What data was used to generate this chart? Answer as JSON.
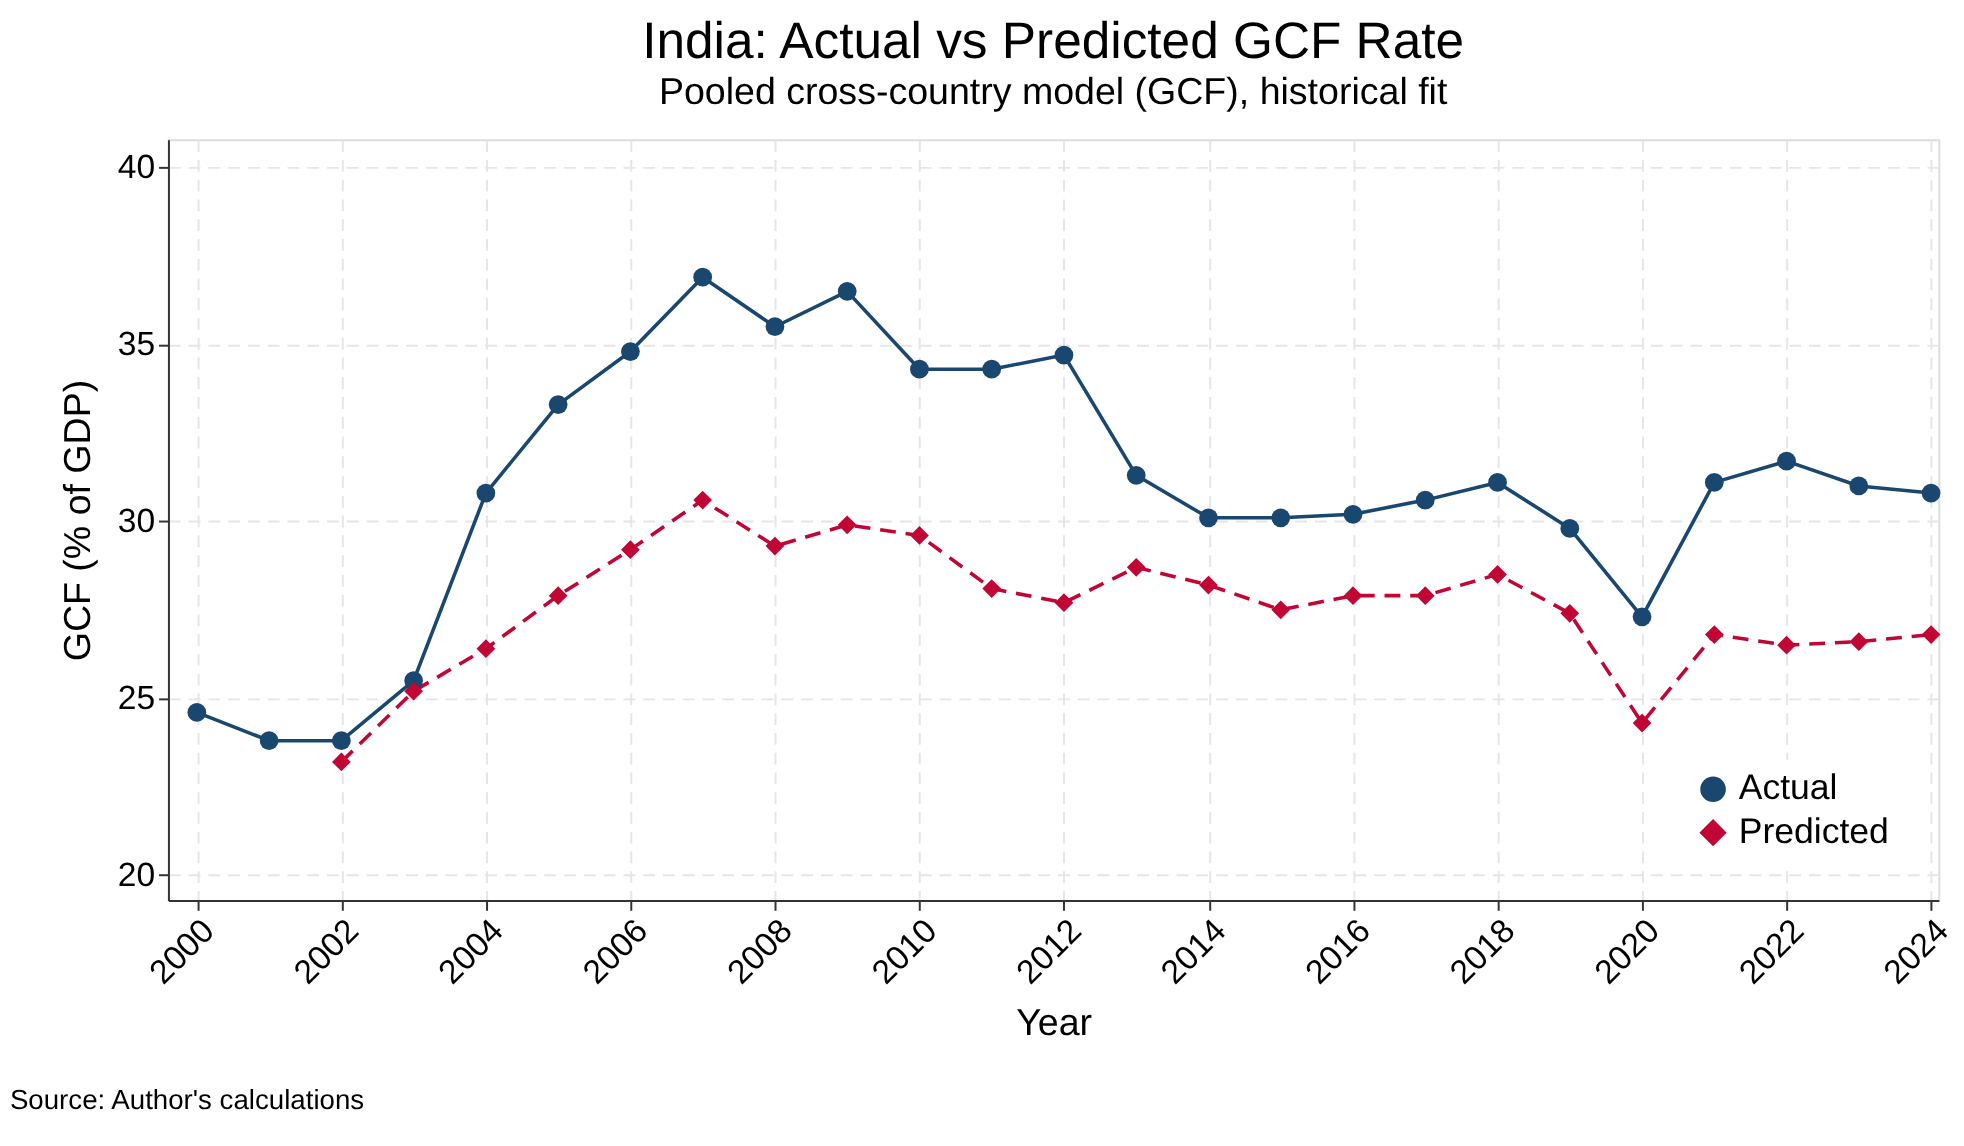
{
  "chart_data": {
    "type": "line",
    "title": "India: Actual vs Predicted GCF Rate",
    "subtitle": "Pooled cross-country model (GCF), historical fit",
    "xlabel": "Year",
    "ylabel": "GCF (% of GDP)",
    "x": [
      2000,
      2001,
      2002,
      2003,
      2004,
      2005,
      2006,
      2007,
      2008,
      2009,
      2010,
      2011,
      2012,
      2013,
      2014,
      2015,
      2016,
      2017,
      2018,
      2019,
      2020,
      2021,
      2022,
      2023,
      2024
    ],
    "series": [
      {
        "name": "Actual",
        "color": "#1a476f",
        "marker": "circle",
        "line_style": "solid",
        "values": [
          24.6,
          23.8,
          23.8,
          25.5,
          30.8,
          33.3,
          34.8,
          36.9,
          35.5,
          36.5,
          34.3,
          34.3,
          34.7,
          31.3,
          30.1,
          30.1,
          30.2,
          30.6,
          31.1,
          29.8,
          27.3,
          31.1,
          31.7,
          31.0,
          30.8
        ]
      },
      {
        "name": "Predicted",
        "color": "#c10534",
        "marker": "diamond",
        "line_style": "dashed",
        "values": [
          null,
          null,
          23.2,
          25.2,
          26.4,
          27.9,
          29.2,
          30.6,
          29.3,
          29.9,
          29.6,
          28.1,
          27.7,
          28.7,
          28.2,
          27.5,
          27.9,
          27.9,
          28.5,
          27.4,
          24.3,
          26.8,
          26.5,
          26.6,
          26.8
        ]
      }
    ],
    "xlim": [
      1999.6,
      2024.1
    ],
    "xticks": [
      2000,
      2002,
      2004,
      2006,
      2008,
      2010,
      2012,
      2014,
      2016,
      2018,
      2020,
      2022,
      2024
    ],
    "ylim": [
      19.3,
      40.8
    ],
    "yticks": [
      20,
      25,
      30,
      35,
      40
    ],
    "grid": true,
    "legend": "bottom right",
    "annotations": [
      "Source: Author's calculations"
    ]
  }
}
